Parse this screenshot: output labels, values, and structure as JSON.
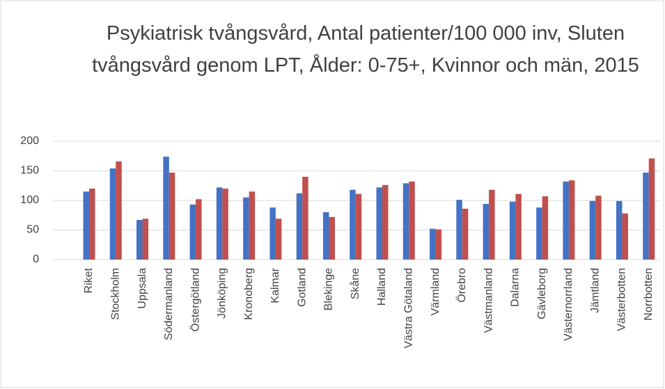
{
  "chart_data": {
    "type": "bar",
    "title": "Psykiatrisk tvångsvård, Antal patienter/100 000 inv, Sluten tvångsvård genom LPT, Ålder: 0-75+, Kvinnor och män, 2015",
    "categories": [
      "Riket",
      "Stockholm",
      "Uppsala",
      "Södermanland",
      "Östergötland",
      "Jönköping",
      "Kronoberg",
      "Kalmar",
      "Gotland",
      "Blekinge",
      "Skåne",
      "Halland",
      "Västra Götaland",
      "Värmland",
      "Örebro",
      "Västmanland",
      "Dalarna",
      "Gävleborg",
      "Västernorrland",
      "Jämtland",
      "Västerbotten",
      "Norrbotten"
    ],
    "series": [
      {
        "color": "#4472c4",
        "values": [
          115,
          154,
          67,
          174,
          93,
          122,
          105,
          88,
          112,
          80,
          118,
          122,
          129,
          52,
          101,
          94,
          98,
          88,
          132,
          99,
          99,
          147
        ]
      },
      {
        "color": "#c0504d",
        "values": [
          120,
          166,
          69,
          147,
          102,
          120,
          115,
          69,
          140,
          72,
          111,
          126,
          132,
          51,
          86,
          118,
          111,
          107,
          134,
          108,
          78,
          171
        ]
      }
    ],
    "ylim": [
      0,
      200
    ],
    "yticks": [
      0,
      50,
      100,
      150,
      200
    ],
    "grid": true
  }
}
